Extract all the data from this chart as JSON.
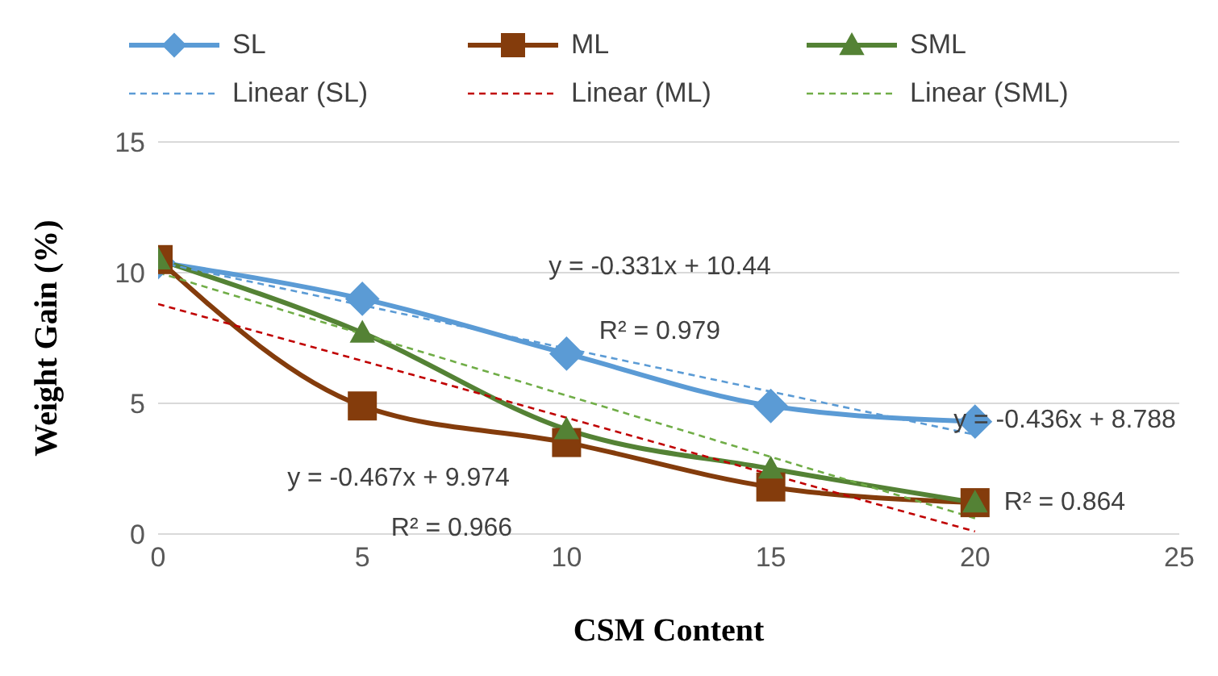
{
  "chart_data": {
    "type": "line",
    "xlabel": "CSM Content",
    "ylabel": "Weight Gain (%)",
    "xlim": [
      0,
      25
    ],
    "xticks": [
      0,
      5,
      10,
      15,
      20,
      25
    ],
    "ylim": [
      0,
      15
    ],
    "yticks": [
      0,
      5,
      10,
      15
    ],
    "grid": "y",
    "legend": "top",
    "series": [
      {
        "name": "SL",
        "color": "#5b9bd5",
        "marker": "diamond",
        "line_style": "solid",
        "x": [
          0,
          5,
          10,
          15,
          20
        ],
        "values": [
          10.4,
          9.0,
          6.9,
          4.9,
          4.3
        ]
      },
      {
        "name": "ML",
        "color": "#843c0c",
        "marker": "square",
        "line_style": "solid",
        "x": [
          0,
          5,
          10,
          15,
          20
        ],
        "values": [
          10.5,
          4.9,
          3.5,
          1.8,
          1.2
        ]
      },
      {
        "name": "SML",
        "color": "#548235",
        "marker": "triangle",
        "line_style": "solid",
        "x": [
          0,
          5,
          10,
          15,
          20
        ],
        "values": [
          10.5,
          7.7,
          4.0,
          2.5,
          1.2
        ]
      },
      {
        "name": "Linear (SL)",
        "color": "#5b9bd5",
        "marker": "none",
        "line_style": "dashed",
        "x": [
          0,
          20
        ],
        "values": [
          10.4,
          3.8
        ]
      },
      {
        "name": "Linear (ML)",
        "color": "#c00000",
        "marker": "none",
        "line_style": "dashed",
        "x": [
          0,
          20
        ],
        "values": [
          8.8,
          0.1
        ]
      },
      {
        "name": "Linear (SML)",
        "color": "#70ad47",
        "marker": "none",
        "line_style": "dashed",
        "x": [
          0,
          20
        ],
        "values": [
          10.0,
          0.6
        ]
      }
    ],
    "annotations": [
      "y = -0.331x + 10.44",
      "R² = 0.979",
      "y = -0.467x + 9.974",
      "R² = 0.966",
      "y = -0.436x + 8.788",
      "R² = 0.864"
    ]
  }
}
